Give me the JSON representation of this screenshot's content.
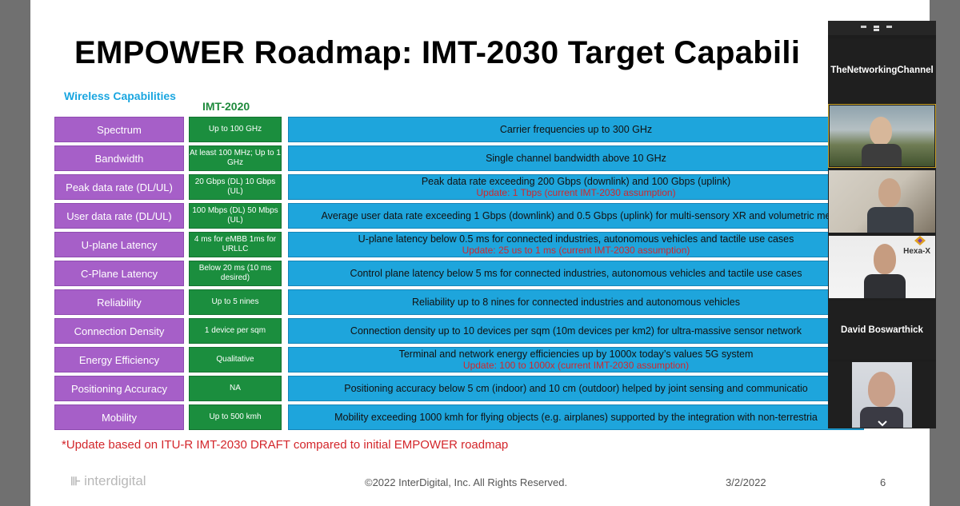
{
  "slide": {
    "title": "EMPOWER Roadmap: IMT-2030 Target Capabili",
    "wireless_heading": "Wireless Capabilities",
    "imt2020_heading": "IMT-2020",
    "rows": [
      {
        "capability": "Spectrum",
        "imt2020": "Up to 100 GHz",
        "target": "Carrier frequencies up to 300 GHz",
        "update": ""
      },
      {
        "capability": "Bandwidth",
        "imt2020": "At least 100 MHz; Up to 1 GHz",
        "target": "Single channel bandwidth above 10 GHz",
        "update": ""
      },
      {
        "capability": "Peak data rate (DL/UL)",
        "imt2020": "20 Gbps (DL) 10 Gbps (UL)",
        "target": "Peak data rate exceeding 200 Gbps (downlink) and 100 Gbps (uplink)",
        "update": "Update: 1 Tbps (current IMT-2030 assumption)"
      },
      {
        "capability": "User data rate (DL/UL)",
        "imt2020": "100 Mbps (DL) 50 Mbps (UL)",
        "target": "Average user data rate exceeding 1 Gbps (downlink) and 0.5 Gbps (uplink) for multi-sensory XR and volumetric me",
        "update": ""
      },
      {
        "capability": "U-plane Latency",
        "imt2020": "4 ms for eMBB 1ms for URLLC",
        "target": "U-plane latency below 0.5 ms for  connected industries, autonomous vehicles and tactile use cases",
        "update": "Update: 25 us to 1 ms (current IMT-2030 assumption)"
      },
      {
        "capability": "C-Plane Latency",
        "imt2020": "Below 20 ms (10 ms desired)",
        "target": "Control plane latency below 5 ms for connected industries, autonomous vehicles and tactile use cases",
        "update": ""
      },
      {
        "capability": "Reliability",
        "imt2020": "Up to 5 nines",
        "target": "Reliability up to 8 nines for connected industries and autonomous vehicles",
        "update": ""
      },
      {
        "capability": "Connection Density",
        "imt2020": "1 device per sqm",
        "target": "Connection density up to 10 devices per sqm (10m devices per km2) for ultra-massive sensor network",
        "update": ""
      },
      {
        "capability": "Energy Efficiency",
        "imt2020": "Qualitative",
        "target": "Terminal and network energy efficiencies up by 1000x today’s values 5G system",
        "update": "Update: 100 to 1000x (current IMT-2030 assumption)"
      },
      {
        "capability": "Positioning Accuracy",
        "imt2020": "NA",
        "target": "Positioning accuracy below 5 cm (indoor) and 10 cm (outdoor) helped by joint sensing and communicatio",
        "update": ""
      },
      {
        "capability": "Mobility",
        "imt2020": "Up to 500 kmh",
        "target": "Mobility exceeding 1000 kmh for flying objects (e.g. airplanes)  supported by the integration with non-terrestria",
        "update": ""
      }
    ],
    "footnote": "*Update based on ITU-R IMT-2030 DRAFT compared to initial EMPOWER roadmap",
    "logo_text": "interdigital",
    "copyright": "©2022 InterDigital, Inc. All Rights Reserved.",
    "date": "3/2/2022",
    "page_number": "6"
  },
  "participants": {
    "channel_name": "TheNetworkingChannel",
    "named_tile": "David Boswarthick",
    "logo_label": "Hexa-X"
  },
  "colors": {
    "capability_bg": "#a65fc8",
    "imt2020_bg": "#1b8e3e",
    "target_bg": "#1ea5dc",
    "update_text": "#d3262b",
    "heading_blue": "#1aa6e0"
  }
}
